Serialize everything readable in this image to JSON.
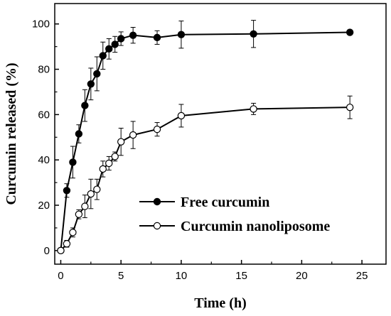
{
  "chart_data": {
    "type": "line",
    "title": "",
    "xlabel": "Time (h)",
    "ylabel": "Curcumin released (%)",
    "xlim": [
      -0.5,
      27
    ],
    "ylim": [
      -6,
      109
    ],
    "x_ticks": [
      0,
      5,
      10,
      15,
      20,
      25
    ],
    "y_ticks": [
      0,
      20,
      40,
      60,
      80,
      100
    ],
    "grid": false,
    "legend_position": "center-right",
    "series": [
      {
        "name": "Free curcumin",
        "marker": "filled-circle",
        "color": "#000000",
        "x": [
          0,
          0.5,
          1,
          1.5,
          2,
          2.5,
          3,
          3.5,
          4,
          4.5,
          5,
          6,
          8,
          10,
          16,
          24
        ],
        "y": [
          0,
          26.5,
          39,
          51.5,
          64,
          73.5,
          78,
          86,
          89,
          91,
          93.5,
          95,
          94,
          95.3,
          95.6,
          96.3
        ],
        "err": [
          0,
          3,
          7,
          4,
          7,
          7,
          7.5,
          6,
          4.5,
          3.5,
          3,
          3.5,
          3,
          6,
          6,
          1
        ]
      },
      {
        "name": "Curcumin nanoliposome",
        "marker": "open-circle",
        "color": "#000000",
        "x": [
          0,
          0.5,
          1,
          1.5,
          2,
          2.5,
          3,
          3.5,
          4,
          4.5,
          5,
          6,
          8,
          10,
          16,
          24
        ],
        "y": [
          0,
          3,
          8,
          16,
          19.5,
          25,
          27,
          36,
          38.5,
          41.5,
          48,
          51,
          53.5,
          59.5,
          62.5,
          63.2
        ],
        "err": [
          0,
          1.5,
          2,
          2,
          5,
          6.5,
          4.5,
          3.5,
          3,
          2,
          6,
          6,
          3,
          5,
          2.5,
          5
        ]
      }
    ]
  }
}
